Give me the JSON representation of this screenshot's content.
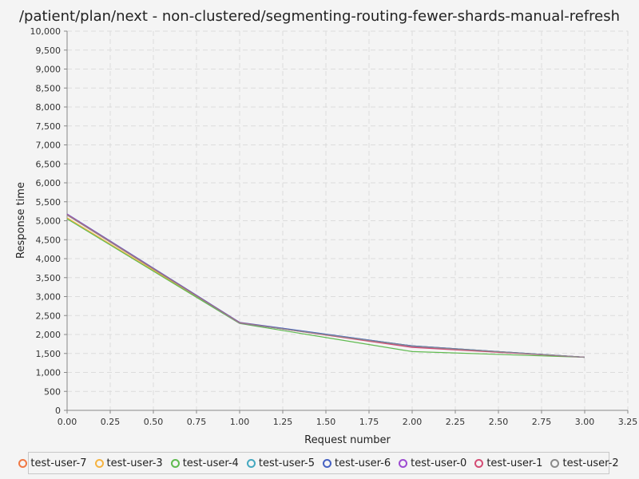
{
  "chart_data": {
    "type": "line",
    "title": "/patient/plan/next - non-clustered/segmenting-routing-fewer-shards-manual-refresh",
    "xlabel": "Request number",
    "ylabel": "Response time",
    "xlim": [
      0,
      3.25
    ],
    "ylim": [
      0,
      10000
    ],
    "x_ticks": [
      "0.00",
      "0.25",
      "0.50",
      "0.75",
      "1.00",
      "1.25",
      "1.50",
      "1.75",
      "2.00",
      "2.25",
      "2.50",
      "2.75",
      "3.00",
      "3.25"
    ],
    "y_ticks": [
      "0",
      "500",
      "1,000",
      "1,500",
      "2,000",
      "2,500",
      "3,000",
      "3,500",
      "4,000",
      "4,500",
      "5,000",
      "5,500",
      "6,000",
      "6,500",
      "7,000",
      "7,500",
      "8,000",
      "8,500",
      "9,000",
      "9,500",
      "10,000"
    ],
    "grid": true,
    "legend_position": "bottom",
    "x": [
      0,
      1,
      2,
      3
    ],
    "series": [
      {
        "name": "test-user-7",
        "color": "#f07844",
        "values": [
          5150,
          2300,
          1700,
          1400
        ]
      },
      {
        "name": "test-user-3",
        "color": "#f5b340",
        "values": [
          5080,
          2310,
          1690,
          1400
        ]
      },
      {
        "name": "test-user-4",
        "color": "#5fba4f",
        "values": [
          5050,
          2290,
          1550,
          1400
        ]
      },
      {
        "name": "test-user-5",
        "color": "#44a8c0",
        "values": [
          5160,
          2310,
          1700,
          1400
        ]
      },
      {
        "name": "test-user-6",
        "color": "#4661c2",
        "values": [
          5180,
          2320,
          1700,
          1400
        ]
      },
      {
        "name": "test-user-0",
        "color": "#9d4bd1",
        "values": [
          5170,
          2300,
          1680,
          1400
        ]
      },
      {
        "name": "test-user-1",
        "color": "#d44c74",
        "values": [
          5160,
          2310,
          1660,
          1400
        ]
      },
      {
        "name": "test-user-2",
        "color": "#8a8a8a",
        "values": [
          5150,
          2300,
          1690,
          1400
        ]
      }
    ]
  }
}
